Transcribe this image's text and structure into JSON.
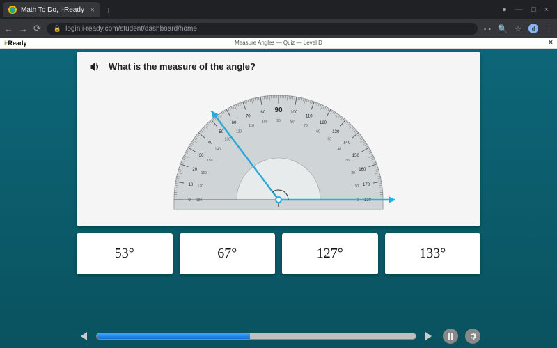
{
  "browser": {
    "tab_title": "Math To Do, i-Ready",
    "url": "login.i-ready.com/student/dashboard/home",
    "avatar_letter": "d"
  },
  "app": {
    "brand_prefix": "i·",
    "brand_name": "Ready",
    "header_title": "Measure Angles — Quiz — Level D"
  },
  "question": {
    "text": "What is the measure of the angle?"
  },
  "protractor": {
    "outer_labels": [
      "0",
      "10",
      "20",
      "30",
      "40",
      "50",
      "60",
      "70",
      "80",
      "90",
      "100",
      "110",
      "120",
      "130",
      "140",
      "150",
      "160",
      "170",
      "180"
    ],
    "inner_labels": [
      "180",
      "170",
      "160",
      "150",
      "140",
      "130",
      "120",
      "110",
      "100",
      "90",
      "80",
      "70",
      "60",
      "50",
      "40",
      "30",
      "20",
      "10",
      "0"
    ],
    "highlight_label": "90",
    "angle_deg": 127,
    "ray_color": "#2aa8d8",
    "arrow_color": "#1eb4e6",
    "body_fill": "#cfd4d6",
    "body_stroke": "#9aa0a3",
    "tick_color": "#555",
    "label_font_size": 6,
    "highlight_font_size": 10
  },
  "answers": {
    "options": [
      "53°",
      "67°",
      "127°",
      "133°"
    ]
  },
  "player": {
    "progress_pct": 48
  },
  "colors": {
    "stage_bg_top": "#0d6678",
    "stage_bg_bottom": "#0a525f",
    "card_bg": "#f5f5f5",
    "answer_bg": "#ffffff",
    "progress_track": "#bfbfbf",
    "progress_fill_top": "#3ba7ff",
    "progress_fill_bottom": "#0f6fd6"
  }
}
